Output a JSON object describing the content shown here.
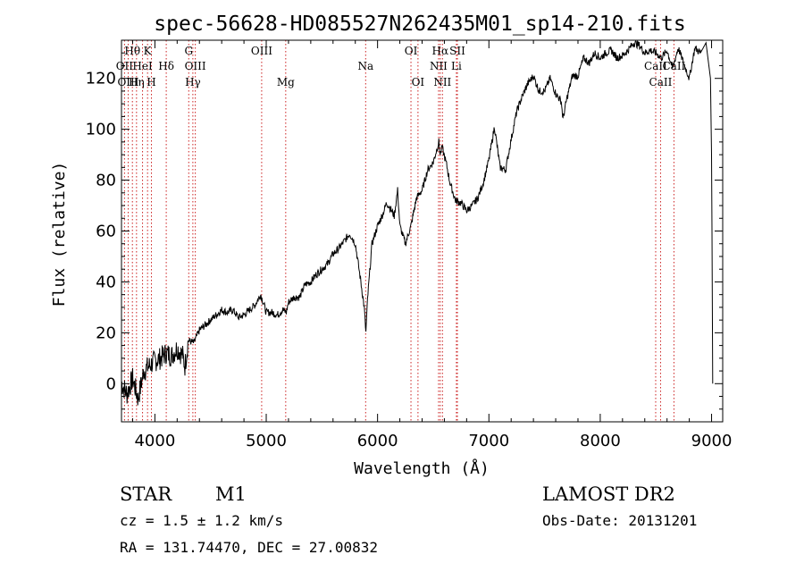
{
  "chart_data": {
    "type": "line",
    "title": "spec-56628-HD085527N262435M01_sp14-210.fits",
    "xlabel": "Wavelength (Å)",
    "ylabel": "Flux (relative)",
    "xlim": [
      3700,
      9100
    ],
    "ylim": [
      -15,
      135
    ],
    "xticks": [
      4000,
      5000,
      6000,
      7000,
      8000,
      9000
    ],
    "yticks": [
      0,
      20,
      40,
      60,
      80,
      100,
      120
    ],
    "grid": false,
    "series": [
      {
        "x": [
          3700,
          3750,
          3800,
          3850,
          3900,
          3950,
          4000,
          4050,
          4100,
          4150,
          4200,
          4250,
          4270,
          4300,
          4350,
          4400,
          4450,
          4500,
          4550,
          4600,
          4650,
          4700,
          4750,
          4800,
          4850,
          4900,
          4950,
          4980,
          5000,
          5050,
          5100,
          5150,
          5180,
          5200,
          5250,
          5300,
          5350,
          5400,
          5450,
          5500,
          5550,
          5600,
          5650,
          5700,
          5750,
          5800,
          5850,
          5880,
          5895,
          5910,
          5950,
          6000,
          6050,
          6080,
          6100,
          6150,
          6180,
          6200,
          6250,
          6300,
          6350,
          6400,
          6450,
          6500,
          6550,
          6563,
          6580,
          6620,
          6650,
          6700,
          6750,
          6800,
          6850,
          6900,
          6950,
          7000,
          7050,
          7100,
          7150,
          7200,
          7250,
          7300,
          7350,
          7400,
          7450,
          7500,
          7550,
          7600,
          7650,
          7665,
          7700,
          7750,
          7800,
          7850,
          7900,
          7950,
          8000,
          8050,
          8100,
          8150,
          8200,
          8250,
          8300,
          8350,
          8400,
          8450,
          8500,
          8550,
          8600,
          8650,
          8700,
          8750,
          8800,
          8850,
          8900,
          8950,
          8990,
          9000,
          9010
        ],
        "y": [
          0,
          -4,
          2,
          -6,
          5,
          7,
          9,
          10,
          12,
          11,
          14,
          11,
          7,
          17,
          16,
          21,
          23,
          25,
          27,
          29,
          28,
          29,
          26,
          27,
          29,
          31,
          35,
          31,
          28,
          28,
          27,
          29,
          28,
          32,
          34,
          34,
          39,
          40,
          43,
          45,
          47,
          51,
          53,
          56,
          59,
          55,
          40,
          30,
          20,
          33,
          55,
          62,
          67,
          71,
          70,
          66,
          76,
          62,
          55,
          62,
          73,
          76,
          84,
          87,
          95,
          90,
          93,
          86,
          79,
          72,
          71,
          68,
          70,
          73,
          79,
          88,
          101,
          85,
          84,
          96,
          107,
          113,
          118,
          121,
          115,
          115,
          120,
          114,
          111,
          104,
          112,
          121,
          121,
          128,
          126,
          130,
          128,
          130,
          131,
          128,
          129,
          131,
          134,
          133,
          130,
          131,
          130,
          128,
          131,
          124,
          132,
          126,
          120,
          132,
          130,
          134,
          120,
          90,
          0
        ]
      }
    ],
    "lines": [
      {
        "name": "Hθ",
        "x": 3798,
        "row": 0
      },
      {
        "name": "OII",
        "x": 3727,
        "row": 1
      },
      {
        "name": "OIII",
        "x": 3760,
        "row": 2
      },
      {
        "name": "Hη",
        "x": 3835,
        "row": 2
      },
      {
        "name": "HeI",
        "x": 3889,
        "row": 1
      },
      {
        "name": "K",
        "x": 3934,
        "row": 0
      },
      {
        "name": "H",
        "x": 3969,
        "row": 2
      },
      {
        "name": "Hδ",
        "x": 4102,
        "row": 1
      },
      {
        "name": "G",
        "x": 4304,
        "row": 0
      },
      {
        "name": "OIII",
        "x": 4363,
        "row": 1
      },
      {
        "name": "Hγ",
        "x": 4341,
        "row": 2
      },
      {
        "name": "OIII",
        "x": 4959,
        "row": 0
      },
      {
        "name": "Mg",
        "x": 5175,
        "row": 2
      },
      {
        "name": "Na",
        "x": 5893,
        "row": 1
      },
      {
        "name": "OI",
        "x": 6300,
        "row": 0
      },
      {
        "name": "OI",
        "x": 6363,
        "row": 2
      },
      {
        "name": "Hα",
        "x": 6563,
        "row": 0
      },
      {
        "name": "NII",
        "x": 6548,
        "row": 1
      },
      {
        "name": "NII",
        "x": 6583,
        "row": 2
      },
      {
        "name": "SII",
        "x": 6717,
        "row": 0
      },
      {
        "name": "Li",
        "x": 6708,
        "row": 1
      },
      {
        "name": "CaII",
        "x": 8498,
        "row": 1
      },
      {
        "name": "CaII",
        "x": 8542,
        "row": 2
      },
      {
        "name": "CaII",
        "x": 8662,
        "row": 1
      }
    ]
  },
  "info": {
    "object_class": "STAR",
    "subclass": "M1",
    "redshift": "cz = 1.5 ± 1.2 km/s",
    "coords": "RA = 131.74470, DEC =  27.00832",
    "survey": "LAMOST DR2",
    "obs_date": "Obs-Date: 20131201"
  }
}
